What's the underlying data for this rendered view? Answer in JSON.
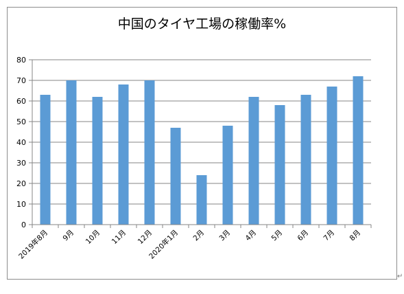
{
  "chart_data": {
    "type": "bar",
    "title": "中国のタイヤ工場の稼働率%",
    "categories": [
      "2019年8月",
      "9月",
      "10月",
      "11月",
      "12月",
      "2020年1月",
      "2月",
      "3月",
      "4月",
      "5月",
      "6月",
      "7月",
      "8月"
    ],
    "values": [
      63,
      70,
      62,
      68,
      70,
      47,
      24,
      48,
      62,
      58,
      63,
      67,
      72
    ],
    "ylim": [
      0,
      80
    ],
    "yticks": [
      0,
      10,
      20,
      30,
      40,
      50,
      60,
      70,
      80
    ],
    "xlabel": "",
    "ylabel": "",
    "grid": true,
    "legend": "none",
    "bar_color": "#5b9bd5",
    "grid_color": "#868686"
  },
  "paragraph_mark": "↵"
}
